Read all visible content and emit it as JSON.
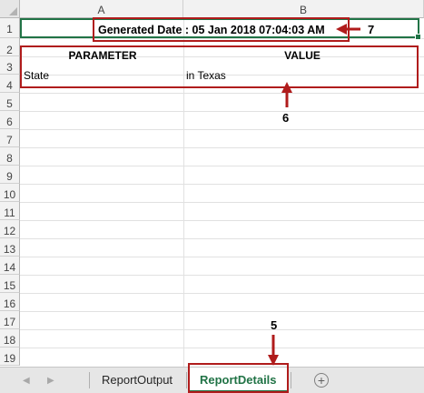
{
  "columns": [
    "A",
    "B"
  ],
  "rows": [
    "1",
    "2",
    "3",
    "4",
    "5",
    "6",
    "7",
    "8",
    "9",
    "10",
    "11",
    "12",
    "13",
    "14",
    "15",
    "16",
    "17",
    "18",
    "19"
  ],
  "cells": {
    "b1": "Generated Date : 05 Jan 2018 07:04:03 AM",
    "a2": "PARAMETER",
    "b2": "VALUE",
    "a3": "State",
    "b3": "in Texas"
  },
  "callouts": {
    "date": "7",
    "table": "6",
    "tab": "5"
  },
  "tabs": [
    "ReportOutput",
    "ReportDetails"
  ],
  "active_tab": "ReportDetails",
  "icons": {
    "scroll_left": "scroll-left-icon",
    "scroll_right": "scroll-right-icon",
    "new_sheet": "plus-circle-icon"
  },
  "colors": {
    "annotation": "#b01c1c",
    "selection": "#217346"
  }
}
